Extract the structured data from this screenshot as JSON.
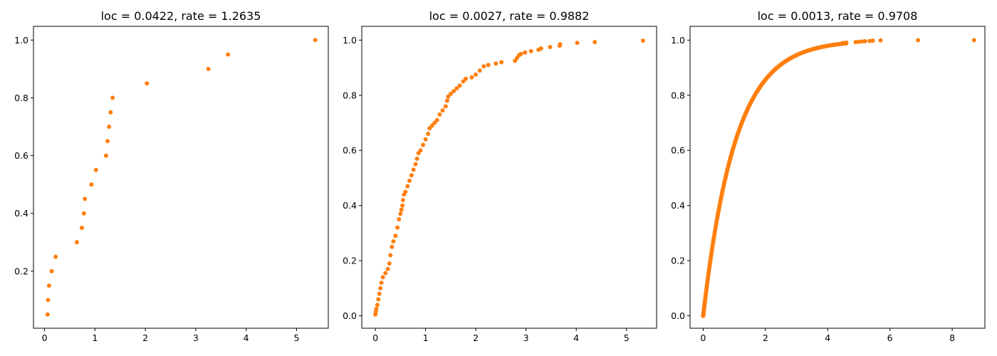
{
  "colors": {
    "marker": "#ff7f0e",
    "axes": "#000000",
    "background": "#ffffff"
  },
  "chart_data": [
    {
      "type": "scatter",
      "title": "loc = 0.0422, rate = 1.2635",
      "xlabel": "",
      "ylabel": "",
      "xlim": [
        -0.22,
        5.63
      ],
      "ylim": [
        0.0025,
        1.0475
      ],
      "xticks": [
        0,
        1,
        2,
        3,
        4,
        5
      ],
      "yticks": [
        0.2,
        0.4,
        0.6,
        0.8,
        1.0
      ],
      "xtick_labels": [
        "0",
        "1",
        "2",
        "3",
        "4",
        "5"
      ],
      "ytick_labels": [
        "0.2",
        "0.4",
        "0.6",
        "0.8",
        "1.0"
      ],
      "grid": false,
      "series": [
        {
          "color": "#ff7f0e",
          "points": [
            [
              0.06,
              0.05
            ],
            [
              0.07,
              0.1
            ],
            [
              0.09,
              0.15
            ],
            [
              0.14,
              0.2
            ],
            [
              0.22,
              0.25
            ],
            [
              0.64,
              0.3
            ],
            [
              0.74,
              0.35
            ],
            [
              0.78,
              0.4
            ],
            [
              0.8,
              0.45
            ],
            [
              0.93,
              0.5
            ],
            [
              1.02,
              0.55
            ],
            [
              1.22,
              0.6
            ],
            [
              1.25,
              0.65
            ],
            [
              1.28,
              0.7
            ],
            [
              1.31,
              0.75
            ],
            [
              1.35,
              0.8
            ],
            [
              2.03,
              0.85
            ],
            [
              3.25,
              0.9
            ],
            [
              3.64,
              0.95
            ],
            [
              5.37,
              1.0
            ]
          ]
        }
      ]
    },
    {
      "type": "scatter",
      "title": "loc = 0.0027, rate = 0.9882",
      "xlabel": "",
      "ylabel": "",
      "xlim": [
        -0.27,
        5.6
      ],
      "ylim": [
        -0.045,
        1.05
      ],
      "xticks": [
        0,
        1,
        2,
        3,
        4,
        5
      ],
      "yticks": [
        0.0,
        0.2,
        0.4,
        0.6,
        0.8,
        1.0
      ],
      "xtick_labels": [
        "0",
        "1",
        "2",
        "3",
        "4",
        "5"
      ],
      "ytick_labels": [
        "0.0",
        "0.2",
        "0.4",
        "0.6",
        "0.8",
        "1.0"
      ],
      "grid": false,
      "series": [
        {
          "color": "#ff7f0e",
          "points": [
            [
              0.0,
              0.005
            ],
            [
              0.01,
              0.015
            ],
            [
              0.02,
              0.025
            ],
            [
              0.04,
              0.04
            ],
            [
              0.06,
              0.06
            ],
            [
              0.08,
              0.08
            ],
            [
              0.1,
              0.1
            ],
            [
              0.12,
              0.12
            ],
            [
              0.15,
              0.14
            ],
            [
              0.2,
              0.155
            ],
            [
              0.25,
              0.17
            ],
            [
              0.28,
              0.19
            ],
            [
              0.3,
              0.22
            ],
            [
              0.33,
              0.25
            ],
            [
              0.36,
              0.27
            ],
            [
              0.4,
              0.29
            ],
            [
              0.44,
              0.32
            ],
            [
              0.47,
              0.35
            ],
            [
              0.5,
              0.37
            ],
            [
              0.52,
              0.385
            ],
            [
              0.54,
              0.4
            ],
            [
              0.55,
              0.42
            ],
            [
              0.57,
              0.44
            ],
            [
              0.6,
              0.45
            ],
            [
              0.64,
              0.47
            ],
            [
              0.68,
              0.49
            ],
            [
              0.72,
              0.51
            ],
            [
              0.76,
              0.53
            ],
            [
              0.8,
              0.55
            ],
            [
              0.83,
              0.57
            ],
            [
              0.86,
              0.59
            ],
            [
              0.9,
              0.6
            ],
            [
              0.95,
              0.62
            ],
            [
              1.0,
              0.64
            ],
            [
              1.05,
              0.66
            ],
            [
              1.08,
              0.68
            ],
            [
              1.13,
              0.69
            ],
            [
              1.18,
              0.7
            ],
            [
              1.23,
              0.71
            ],
            [
              1.28,
              0.73
            ],
            [
              1.34,
              0.745
            ],
            [
              1.4,
              0.76
            ],
            [
              1.43,
              0.78
            ],
            [
              1.45,
              0.795
            ],
            [
              1.5,
              0.805
            ],
            [
              1.56,
              0.815
            ],
            [
              1.62,
              0.825
            ],
            [
              1.68,
              0.835
            ],
            [
              1.75,
              0.85
            ],
            [
              1.8,
              0.86
            ],
            [
              1.92,
              0.865
            ],
            [
              2.0,
              0.875
            ],
            [
              2.08,
              0.89
            ],
            [
              2.16,
              0.905
            ],
            [
              2.25,
              0.91
            ],
            [
              2.4,
              0.915
            ],
            [
              2.51,
              0.92
            ],
            [
              2.78,
              0.925
            ],
            [
              2.82,
              0.935
            ],
            [
              2.86,
              0.945
            ],
            [
              2.9,
              0.95
            ],
            [
              2.98,
              0.955
            ],
            [
              3.1,
              0.96
            ],
            [
              3.25,
              0.965
            ],
            [
              3.3,
              0.97
            ],
            [
              3.48,
              0.975
            ],
            [
              3.67,
              0.98
            ],
            [
              3.68,
              0.985
            ],
            [
              4.02,
              0.99
            ],
            [
              4.37,
              0.993
            ],
            [
              5.33,
              0.998
            ]
          ]
        }
      ]
    },
    {
      "type": "scatter",
      "title": "loc = 0.0013, rate = 0.9708",
      "xlabel": "",
      "ylabel": "",
      "xlim": [
        -0.42,
        9.05
      ],
      "ylim": [
        -0.045,
        1.05
      ],
      "xticks": [
        0,
        2,
        4,
        6,
        8
      ],
      "yticks": [
        0.0,
        0.2,
        0.4,
        0.6,
        0.8,
        1.0
      ],
      "xtick_labels": [
        "0",
        "2",
        "4",
        "6",
        "8"
      ],
      "ytick_labels": [
        "0.0",
        "0.2",
        "0.4",
        "0.6",
        "0.8",
        "1.0"
      ],
      "grid": false,
      "series": [
        {
          "color": "#ff7f0e",
          "curve": {
            "function": "exponential_cdf",
            "loc": 0.0013,
            "rate": 0.9708,
            "x_start": 0.0,
            "x_end": 4.6,
            "count": 260
          },
          "points": [
            [
              4.5,
              0.99
            ],
            [
              4.6,
              0.991
            ],
            [
              4.9,
              0.993
            ],
            [
              5.0,
              0.994
            ],
            [
              5.1,
              0.995
            ],
            [
              5.2,
              0.996
            ],
            [
              5.35,
              0.997
            ],
            [
              5.45,
              0.998
            ],
            [
              5.7,
              0.999
            ],
            [
              6.9,
              0.9995
            ],
            [
              8.7,
              0.9998
            ]
          ]
        }
      ]
    }
  ]
}
